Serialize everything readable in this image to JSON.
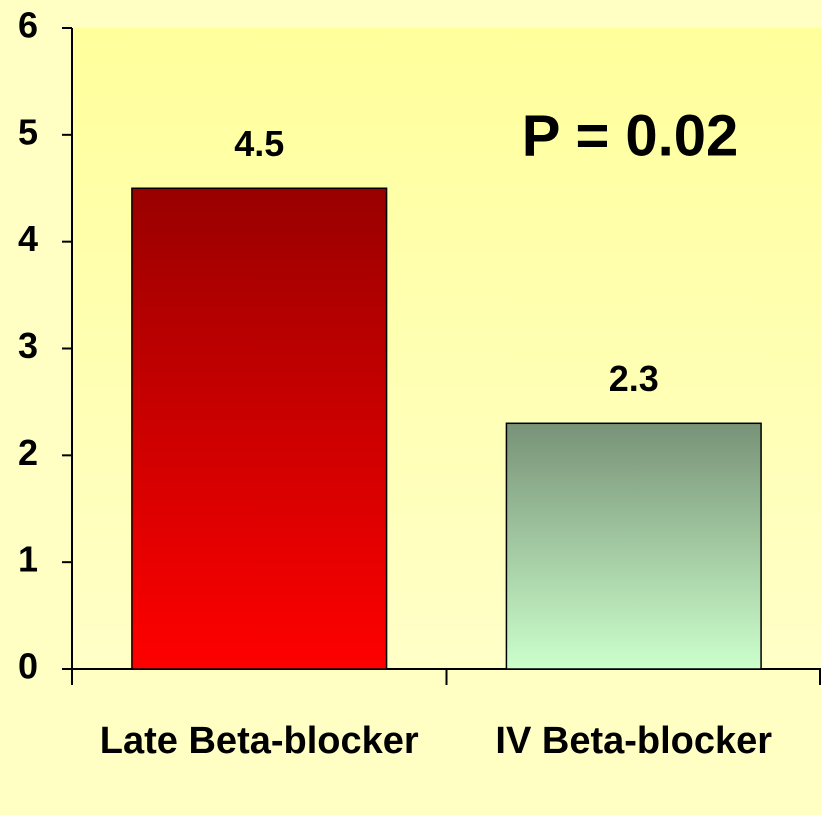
{
  "chart_data": {
    "type": "bar",
    "categories": [
      "Late Beta-blocker",
      "IV Beta-blocker"
    ],
    "values": [
      4.5,
      2.3
    ],
    "gradients": [
      [
        "#990000",
        "#ff0000"
      ],
      [
        "#789277",
        "#ccffcc"
      ]
    ],
    "ylim": [
      0,
      6
    ],
    "yticks": [
      0,
      1,
      2,
      3,
      4,
      5,
      6
    ],
    "annotation": "P = 0.02"
  }
}
